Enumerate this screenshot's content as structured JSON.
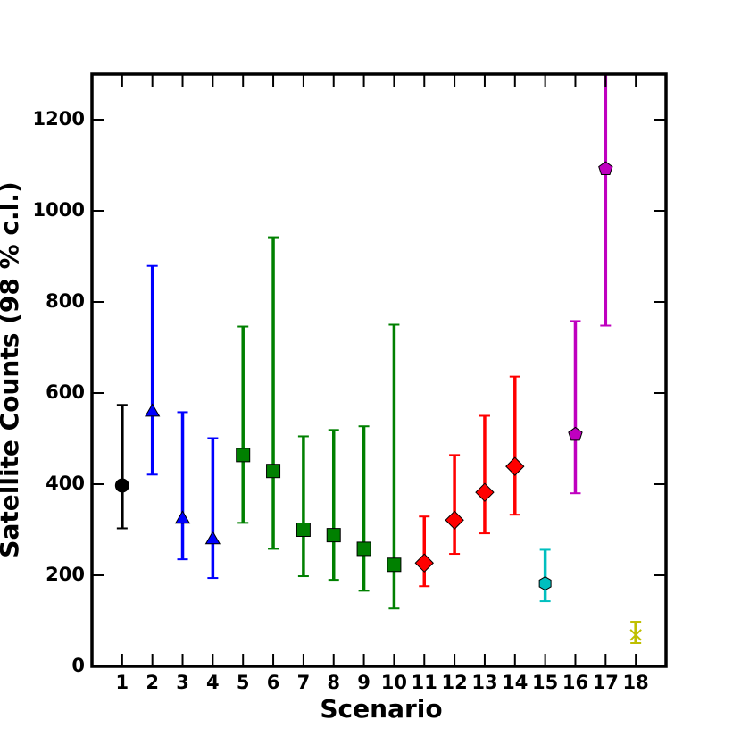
{
  "chart_data": {
    "type": "errorbar",
    "xlabel": "Scenario",
    "ylabel": "Satellite Counts (98 % c.l.)",
    "xlim": [
      0,
      19
    ],
    "ylim": [
      0,
      1300
    ],
    "xticks": [
      1,
      2,
      3,
      4,
      5,
      6,
      7,
      8,
      9,
      10,
      11,
      12,
      13,
      14,
      15,
      16,
      17,
      18
    ],
    "yticks": [
      0,
      200,
      400,
      600,
      800,
      1000,
      1200
    ],
    "series": [
      {
        "color": "#000000",
        "marker": "circle",
        "x": [
          1
        ],
        "values": [
          397
        ],
        "lower": [
          303
        ],
        "upper": [
          574
        ]
      },
      {
        "color": "#0000ff",
        "marker": "triangle",
        "x": [
          2,
          3,
          4
        ],
        "values": [
          558,
          323,
          278
        ],
        "lower": [
          421,
          235,
          194
        ],
        "upper": [
          879,
          558,
          501
        ]
      },
      {
        "color": "#008000",
        "marker": "square",
        "x": [
          5,
          6,
          7,
          8,
          9,
          10
        ],
        "values": [
          464,
          429,
          300,
          288,
          258,
          223
        ],
        "lower": [
          315,
          258,
          198,
          190,
          166,
          127
        ],
        "upper": [
          746,
          942,
          505,
          519,
          527,
          750
        ]
      },
      {
        "color": "#ff0000",
        "marker": "diamond",
        "x": [
          11,
          12,
          13,
          14
        ],
        "values": [
          227,
          321,
          382,
          439
        ],
        "lower": [
          176,
          247,
          292,
          333
        ],
        "upper": [
          329,
          464,
          550,
          636
        ]
      },
      {
        "color": "#00bfbf",
        "marker": "hexagon",
        "x": [
          15
        ],
        "values": [
          182
        ],
        "lower": [
          143
        ],
        "upper": [
          256
        ]
      },
      {
        "color": "#bf00bf",
        "marker": "pentagon",
        "x": [
          16,
          17
        ],
        "values": [
          509,
          1092
        ],
        "lower": [
          380,
          748
        ],
        "upper": [
          758,
          1300
        ]
      },
      {
        "color": "#bfbf00",
        "marker": "x",
        "x": [
          18
        ],
        "values": [
          69
        ],
        "lower": [
          51
        ],
        "upper": [
          98
        ]
      }
    ]
  }
}
